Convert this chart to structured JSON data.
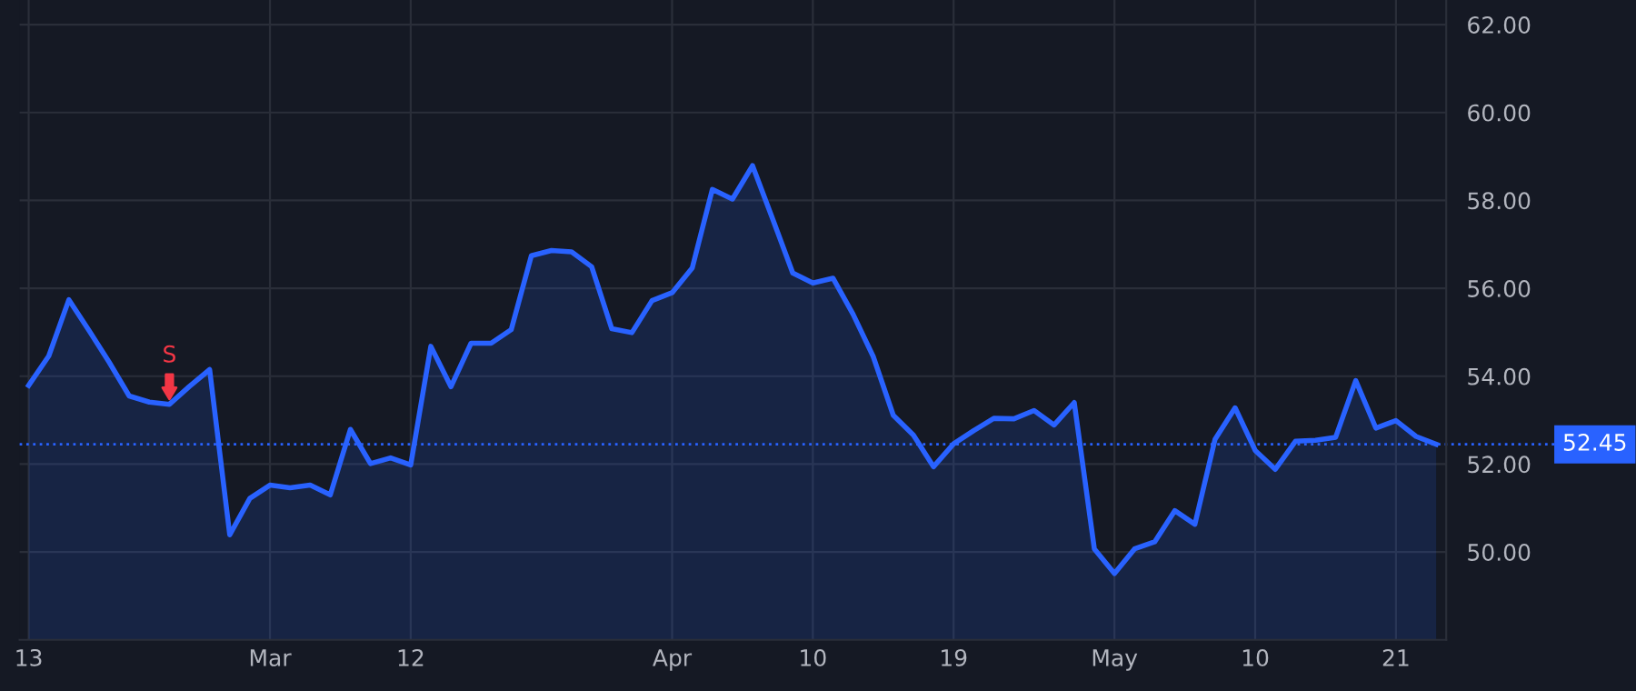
{
  "chart_data": {
    "type": "area",
    "categories": [
      "13",
      null,
      null,
      null,
      null,
      null,
      null,
      null,
      null,
      null,
      null,
      null,
      "Mar",
      null,
      null,
      null,
      null,
      null,
      null,
      "12",
      null,
      null,
      null,
      null,
      null,
      null,
      null,
      null,
      null,
      null,
      null,
      null,
      "Apr",
      null,
      null,
      null,
      null,
      null,
      null,
      "10",
      null,
      null,
      null,
      null,
      null,
      null,
      "19",
      null,
      null,
      null,
      null,
      null,
      null,
      null,
      "May",
      null,
      null,
      null,
      null,
      null,
      null,
      "10",
      null,
      null,
      null,
      null,
      null,
      null,
      "21",
      null,
      null
    ],
    "series": [
      {
        "color": "#2962ff",
        "values": [
          53.79,
          54.46,
          55.74,
          55.04,
          54.32,
          53.55,
          53.41,
          53.36,
          53.77,
          54.15,
          50.39,
          51.22,
          51.52,
          51.46,
          51.52,
          51.3,
          52.79,
          52.01,
          52.14,
          51.98,
          54.68,
          53.76,
          54.75,
          54.75,
          55.06,
          56.74,
          56.86,
          56.83,
          56.49,
          55.08,
          54.99,
          55.72,
          55.9,
          56.46,
          58.25,
          58.03,
          58.79,
          57.58,
          56.35,
          56.12,
          56.23,
          55.41,
          54.45,
          53.11,
          52.66,
          51.94,
          52.46,
          52.76,
          53.04,
          53.03,
          53.22,
          52.89,
          53.4,
          50.07,
          49.51,
          50.07,
          50.23,
          50.94,
          50.63,
          52.56,
          53.28,
          52.31,
          51.88,
          52.52,
          52.54,
          52.61,
          53.9,
          52.82,
          52.99,
          52.63,
          52.45
        ]
      }
    ],
    "ylim": [
      48,
      62.56
    ],
    "yticks": [
      {
        "value": 50,
        "label": "50.00"
      },
      {
        "value": 52,
        "label": "52.00"
      },
      {
        "value": 54,
        "label": "54.00"
      },
      {
        "value": 56,
        "label": "56.00"
      },
      {
        "value": 58,
        "label": "58.00"
      },
      {
        "value": 60,
        "label": "60.00"
      },
      {
        "value": 62,
        "label": "62.00"
      }
    ],
    "ref_lines": [
      {
        "axis": "y",
        "value": 52.45,
        "label": "52.45",
        "color": "#2962ff",
        "line_style": "dotted"
      }
    ],
    "annotations": [
      {
        "text": "S",
        "y": 53.36
      }
    ],
    "grid": true
  }
}
